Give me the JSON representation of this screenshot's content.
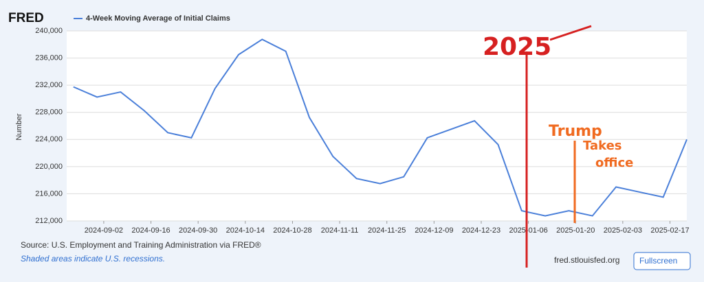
{
  "chart_data": {
    "type": "line",
    "logo": "FRED",
    "ylabel": "Number",
    "x": [
      "2024-08-24",
      "2024-08-31",
      "2024-09-07",
      "2024-09-14",
      "2024-09-21",
      "2024-09-28",
      "2024-10-05",
      "2024-10-12",
      "2024-10-19",
      "2024-10-26",
      "2024-11-02",
      "2024-11-09",
      "2024-11-16",
      "2024-11-23",
      "2024-11-30",
      "2024-12-07",
      "2024-12-14",
      "2024-12-21",
      "2024-12-28",
      "2025-01-04",
      "2025-01-11",
      "2025-01-18",
      "2025-01-25",
      "2025-02-01",
      "2025-02-08",
      "2025-02-15",
      "2025-02-22"
    ],
    "series": [
      {
        "name": "4-Week Moving Average of Initial Claims",
        "color": "#4a7fd9",
        "values": [
          231750,
          230250,
          231000,
          228250,
          225000,
          224250,
          231500,
          236500,
          238750,
          237000,
          227250,
          221500,
          218250,
          217500,
          218500,
          224250,
          225500,
          226750,
          223250,
          213500,
          212750,
          213500,
          212750,
          217000,
          216250,
          215500,
          224000
        ]
      }
    ],
    "xlim": [
      "2024-08-22",
      "2025-02-22"
    ],
    "xticks": [
      "2024-09-02",
      "2024-09-16",
      "2024-09-30",
      "2024-10-14",
      "2024-10-28",
      "2024-11-11",
      "2024-11-25",
      "2024-12-09",
      "2024-12-23",
      "2025-01-06",
      "2025-01-20",
      "2025-02-03",
      "2025-02-17"
    ],
    "ylim": [
      212000,
      240000
    ],
    "yticks": [
      {
        "value": 212000,
        "label": "212,000"
      },
      {
        "value": 216000,
        "label": "216,000"
      },
      {
        "value": 220000,
        "label": "220,000"
      },
      {
        "value": 224000,
        "label": "224,000"
      },
      {
        "value": 228000,
        "label": "228,000"
      },
      {
        "value": 232000,
        "label": "232,000"
      },
      {
        "value": 236000,
        "label": "236,000"
      },
      {
        "value": 240000,
        "label": "240,000"
      }
    ],
    "grid": true,
    "source": "Source: U.S. Employment and Training Administration via FRED®",
    "note": "Shaded areas indicate U.S. recessions.",
    "site": "fred.stlouisfed.org",
    "button": "Fullscreen",
    "annotations": [
      "2025",
      "Trump",
      "Takes",
      "office"
    ]
  }
}
